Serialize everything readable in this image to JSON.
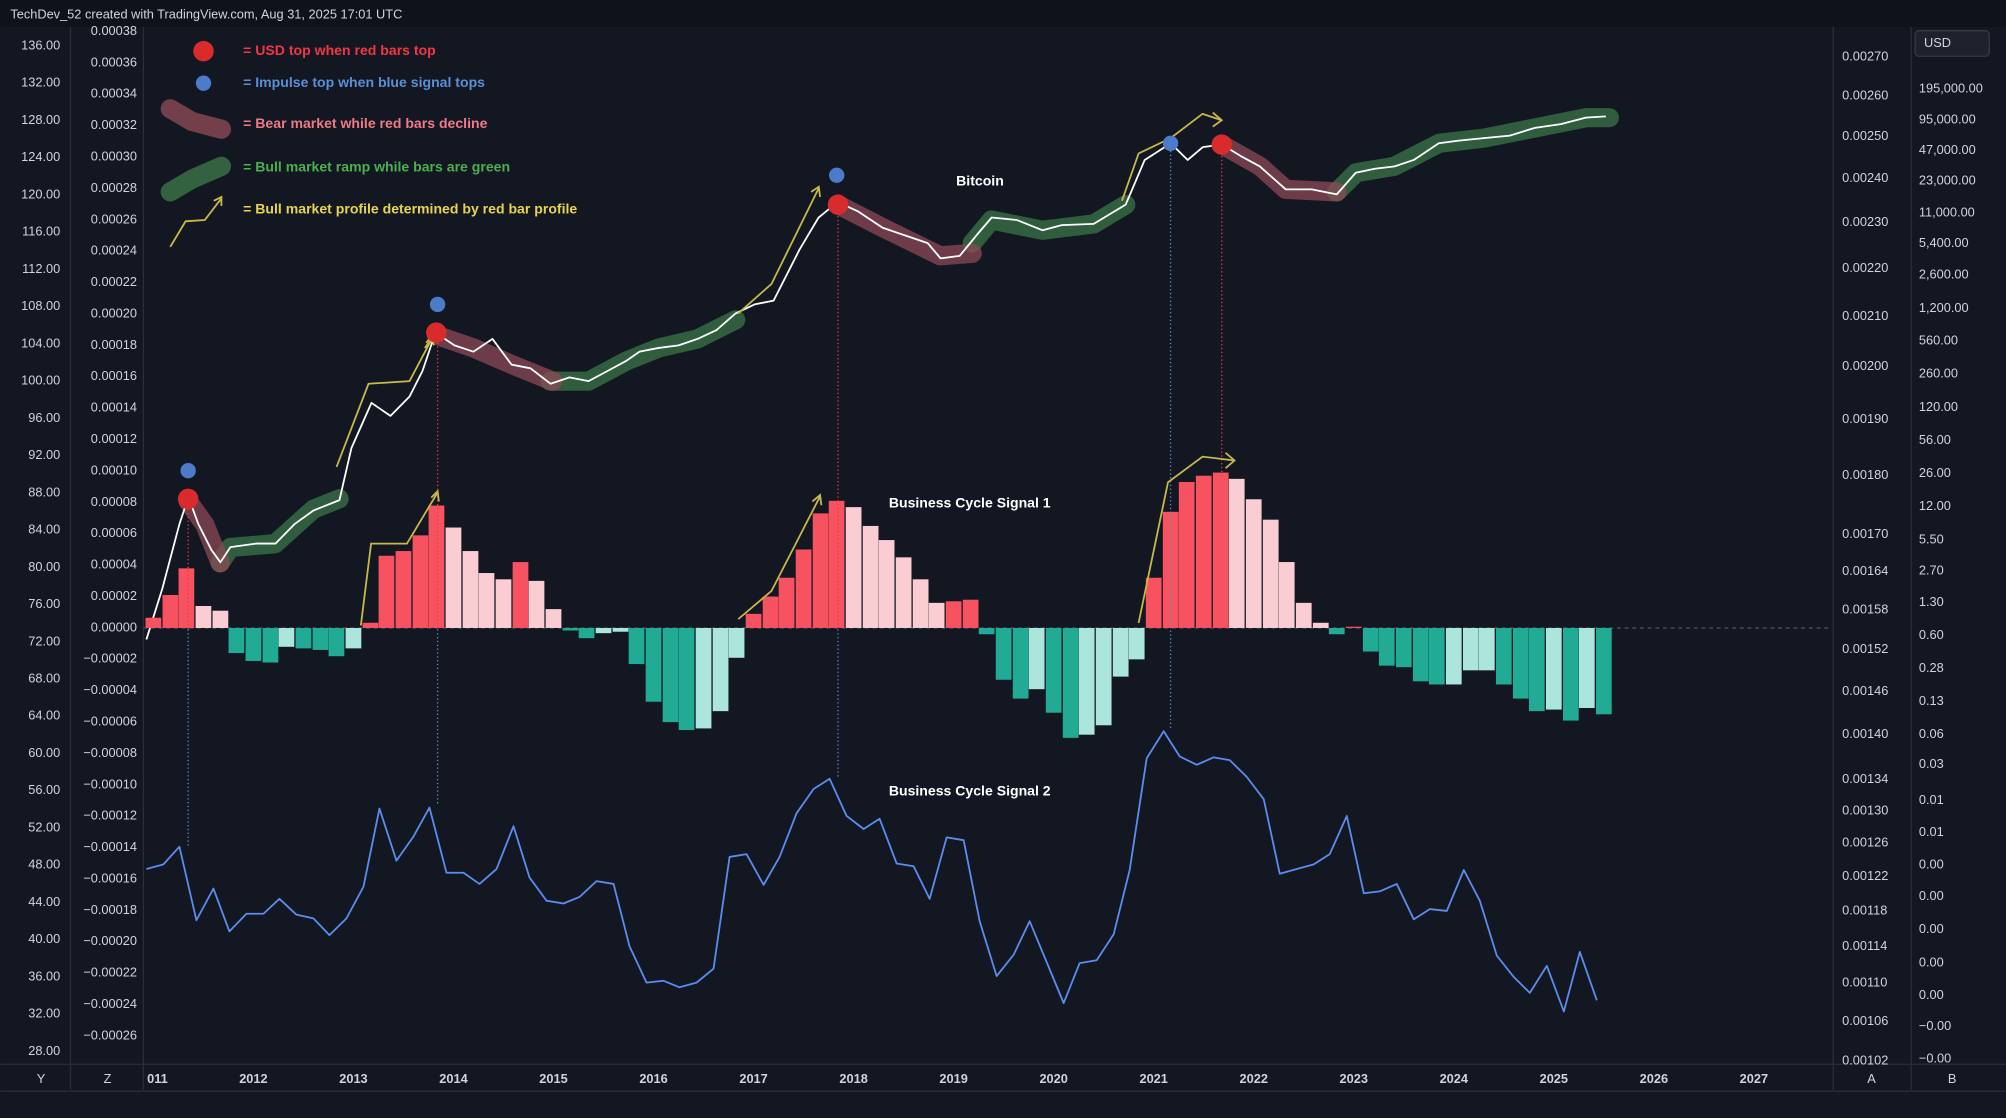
{
  "header": "TechDev_52 created with TradingView.com, Aug 31, 2025 17:01 UTC",
  "currency": "USD",
  "toolbar": {
    "left": [
      "Y",
      "Z"
    ],
    "right": [
      "A",
      "B"
    ]
  },
  "legend": [
    {
      "text": "= USD top when red bars top",
      "color": "#f23645"
    },
    {
      "text": "= Impulse top when blue signal tops",
      "color": "#5b8fd6"
    },
    {
      "text": "= Bear market while red bars decline",
      "color": "#f07a86"
    },
    {
      "text": "= Bull market ramp while bars are green",
      "color": "#4caf50"
    },
    {
      "text": "= Bull market profile determined by red bar profile",
      "color": "#e8d44d"
    }
  ],
  "chart_data": [
    {
      "type": "line",
      "title": "Bitcoin",
      "color": "#ffffff",
      "log": true,
      "xlim": [
        2010.9,
        2027.78
      ],
      "xticks": [
        {
          "value": 2011,
          "label": "011"
        },
        2012,
        2013,
        2014,
        2015,
        2016,
        2017,
        2018,
        2019,
        2020,
        2021,
        2022,
        2023,
        2024,
        2025,
        2026,
        2027
      ],
      "ylim": [
        2.85e-05,
        832000
      ],
      "yticks": [
        {
          "value": 195000,
          "label": "195,000.00"
        },
        {
          "value": 95000,
          "label": "95,000.00"
        },
        {
          "value": 47000,
          "label": "47,000.00"
        },
        {
          "value": 23000,
          "label": "23,000.00"
        },
        {
          "value": 11000,
          "label": "11,000.00"
        },
        {
          "value": 5400,
          "label": "5,400.00"
        },
        {
          "value": 2600,
          "label": "2,600.00"
        },
        {
          "value": 1200,
          "label": "1,200.00"
        },
        {
          "value": 560,
          "label": "560.00"
        },
        {
          "value": 260,
          "label": "260.00"
        },
        {
          "value": 120,
          "label": "120.00"
        },
        {
          "value": 56,
          "label": "56.00"
        },
        {
          "value": 26,
          "label": "26.00"
        },
        {
          "value": 12,
          "label": "12.00"
        },
        {
          "value": 5.5,
          "label": "5.50"
        },
        {
          "value": 2.7,
          "label": "2.70"
        },
        {
          "value": 1.3,
          "label": "1.30"
        },
        {
          "value": 0.6,
          "label": "0.60"
        },
        0.28,
        0.13,
        0.06,
        0.03,
        {
          "value": 0.013,
          "label": "0.01"
        },
        {
          "value": 0.0062,
          "label": "0.01"
        },
        {
          "value": 0.0029,
          "label": "0.00"
        },
        {
          "value": 0.0014,
          "label": "0.00"
        },
        {
          "value": 0.00065,
          "label": "0.00"
        },
        {
          "value": 0.0003,
          "label": "0.00"
        },
        {
          "value": 0.00014,
          "label": "0.00"
        },
        {
          "value": 6.8e-05,
          "label": "−0.00"
        },
        {
          "value": 3.2e-05,
          "label": "−0.00"
        }
      ],
      "x": [
        2010.93,
        2011.09,
        2011.26,
        2011.35,
        2011.45,
        2011.58,
        2011.67,
        2011.77,
        2012.03,
        2012.22,
        2012.41,
        2012.6,
        2012.86,
        2012.98,
        2013.18,
        2013.37,
        2013.56,
        2013.69,
        2013.82,
        2014.01,
        2014.2,
        2014.39,
        2014.58,
        2014.77,
        2014.97,
        2015.16,
        2015.35,
        2015.54,
        2015.73,
        2015.86,
        2016.05,
        2016.25,
        2016.44,
        2016.63,
        2016.82,
        2017.01,
        2017.2,
        2017.33,
        2017.46,
        2017.65,
        2017.84,
        2018.04,
        2018.29,
        2018.55,
        2018.74,
        2018.87,
        2019.06,
        2019.25,
        2019.38,
        2019.63,
        2019.89,
        2020.08,
        2020.4,
        2020.72,
        2020.91,
        2021.17,
        2021.34,
        2021.49,
        2021.68,
        2021.87,
        2022.06,
        2022.32,
        2022.58,
        2022.83,
        2023.02,
        2023.21,
        2023.41,
        2023.6,
        2023.85,
        2024.05,
        2024.3,
        2024.56,
        2024.81,
        2025.07,
        2025.32,
        2025.52
      ],
      "values": [
        0.55,
        1.8,
        8.0,
        15,
        8.0,
        4.4,
        3.3,
        4.7,
        5.1,
        5.1,
        8.0,
        11,
        14,
        47,
        134,
        99,
        155,
        281,
        685,
        509,
        440,
        592,
        326,
        299,
        209,
        242,
        222,
        281,
        357,
        440,
        480,
        509,
        592,
        728,
        1070,
        1320,
        1440,
        2610,
        4730,
        9930,
        14200,
        11500,
        7830,
        6370,
        5480,
        3840,
        4070,
        6970,
        9930,
        9380,
        7380,
        8320,
        8570,
        13400,
        37800,
        55700,
        37800,
        50900,
        54100,
        41400,
        32600,
        19100,
        19100,
        17000,
        28100,
        30800,
        32600,
        37800,
        55700,
        59200,
        62700,
        66500,
        79600,
        86900,
        101000,
        104000
      ]
    },
    {
      "type": "bar",
      "title": "Business Cycle Signal 1",
      "colors": {
        "rising_positive": "#f7525f",
        "falling_positive": "#facdd3",
        "rising_negative": "#22ab94",
        "falling_negative": "#ace5dc"
      },
      "ylim": [
        -0.000278,
        0.000383
      ],
      "yticks": [
        0.00038,
        0.00036,
        0.00034,
        0.00032,
        {
          "value": 0.0003,
          "label": "0.00030"
        },
        0.00028,
        0.00026,
        0.00024,
        0.00022,
        {
          "value": 0.0002,
          "label": "0.00020"
        },
        0.00018,
        0.00016,
        0.00014,
        0.00012,
        {
          "value": 0.0001,
          "label": "0.00010"
        },
        8e-05,
        6e-05,
        4e-05,
        2e-05,
        {
          "value": 0,
          "label": "0.00000"
        },
        {
          "value": -2e-05,
          "label": "−0.00002"
        },
        {
          "value": -4e-05,
          "label": "−0.00004"
        },
        {
          "value": -6e-05,
          "label": "−0.00006"
        },
        {
          "value": -8e-05,
          "label": "−0.00008"
        },
        {
          "value": -0.0001,
          "label": "−0.00010"
        },
        {
          "value": -0.00012,
          "label": "−0.00012"
        },
        {
          "value": -0.00014,
          "label": "−0.00014"
        },
        {
          "value": -0.00016,
          "label": "−0.00016"
        },
        {
          "value": -0.00018,
          "label": "−0.00018"
        },
        {
          "value": -0.0002,
          "label": "−0.00020"
        },
        {
          "value": -0.00022,
          "label": "−0.00022"
        },
        {
          "value": -0.00024,
          "label": "−0.00024"
        },
        {
          "value": -0.00026,
          "label": "−0.00026"
        }
      ],
      "x": [
        2011.0,
        2011.17,
        2011.33,
        2011.5,
        2011.67,
        2011.83,
        2012.0,
        2012.17,
        2012.33,
        2012.5,
        2012.67,
        2012.83,
        2013.0,
        2013.17,
        2013.33,
        2013.5,
        2013.67,
        2013.83,
        2014.0,
        2014.17,
        2014.33,
        2014.5,
        2014.67,
        2014.83,
        2015.0,
        2015.17,
        2015.33,
        2015.5,
        2015.67,
        2015.83,
        2016.0,
        2016.17,
        2016.33,
        2016.5,
        2016.67,
        2016.83,
        2017.0,
        2017.17,
        2017.33,
        2017.5,
        2017.67,
        2017.83,
        2018.0,
        2018.17,
        2018.33,
        2018.5,
        2018.67,
        2018.83,
        2019.0,
        2019.17,
        2019.33,
        2019.5,
        2019.67,
        2019.83,
        2020.0,
        2020.17,
        2020.33,
        2020.5,
        2020.67,
        2020.83,
        2021.0,
        2021.17,
        2021.33,
        2021.5,
        2021.67,
        2021.83,
        2022.0,
        2022.17,
        2022.33,
        2022.5,
        2022.67,
        2022.83,
        2023.0,
        2023.17,
        2023.33,
        2023.5,
        2023.67,
        2023.83,
        2024.0,
        2024.17,
        2024.33,
        2024.5,
        2024.67,
        2024.83,
        2025.0,
        2025.17,
        2025.33,
        2025.5
      ],
      "values": [
        6.5e-06,
        2.1e-05,
        3.8e-05,
        1.4e-05,
        1.1e-05,
        -1.6e-05,
        -2.1e-05,
        -2.2e-05,
        -1.2e-05,
        -1.3e-05,
        -1.4e-05,
        -1.8e-05,
        -1.3e-05,
        3.3e-06,
        4.6e-05,
        4.9e-05,
        5.9e-05,
        7.8e-05,
        6.4e-05,
        4.9e-05,
        3.5e-05,
        3.1e-05,
        4.2e-05,
        3e-05,
        1.2e-05,
        -1.6e-06,
        -6.5e-06,
        -3.3e-06,
        -2.4e-06,
        -2.3e-05,
        -4.7e-05,
        -6e-05,
        -6.5e-05,
        -6.4e-05,
        -5.3e-05,
        -1.9e-05,
        9e-06,
        2e-05,
        3.2e-05,
        5e-05,
        7.3e-05,
        8.1e-05,
        7.7e-05,
        6.5e-05,
        5.6e-05,
        4.5e-05,
        3.1e-05,
        1.6e-05,
        1.7e-05,
        1.8e-05,
        -4e-06,
        -3.3e-05,
        -4.5e-05,
        -3.9e-05,
        -5.4e-05,
        -7e-05,
        -6.8e-05,
        -6.2e-05,
        -3.1e-05,
        -2e-05,
        3.2e-05,
        7.4e-05,
        9.3e-05,
        9.7e-05,
        9.9e-05,
        9.5e-05,
        8.2e-05,
        6.9e-05,
        4.2e-05,
        1.6e-05,
        3.3e-06,
        -4e-06,
        8e-07,
        -1.5e-05,
        -2.4e-05,
        -2.5e-05,
        -3.4e-05,
        -3.6e-05,
        -3.6e-05,
        -2.7e-05,
        -2.7e-05,
        -3.6e-05,
        -4.5e-05,
        -5.3e-05,
        -5.2e-05,
        -5.9e-05,
        -5.1e-05,
        -5.5e-05
      ]
    },
    {
      "type": "line",
      "title": "Business Cycle Signal 2",
      "color": "#5b8def",
      "ylim": [
        26.63,
        138.06
      ],
      "yticks": [
        {
          "value": 136,
          "label": "136.00"
        },
        {
          "value": 132,
          "label": "132.00"
        },
        {
          "value": 128,
          "label": "128.00"
        },
        {
          "value": 124,
          "label": "124.00"
        },
        {
          "value": 120,
          "label": "120.00"
        },
        {
          "value": 116,
          "label": "116.00"
        },
        {
          "value": 112,
          "label": "112.00"
        },
        {
          "value": 108,
          "label": "108.00"
        },
        {
          "value": 104,
          "label": "104.00"
        },
        {
          "value": 100,
          "label": "100.00"
        },
        {
          "value": 96,
          "label": "96.00"
        },
        {
          "value": 92,
          "label": "92.00"
        },
        {
          "value": 88,
          "label": "88.00"
        },
        {
          "value": 84,
          "label": "84.00"
        },
        {
          "value": 80,
          "label": "80.00"
        },
        {
          "value": 76,
          "label": "76.00"
        },
        {
          "value": 72,
          "label": "72.00"
        },
        {
          "value": 68,
          "label": "68.00"
        },
        {
          "value": 64,
          "label": "64.00"
        },
        {
          "value": 60,
          "label": "60.00"
        },
        {
          "value": 56,
          "label": "56.00"
        },
        {
          "value": 52,
          "label": "52.00"
        },
        {
          "value": 48,
          "label": "48.00"
        },
        {
          "value": 44,
          "label": "44.00"
        },
        {
          "value": 40,
          "label": "40.00"
        },
        {
          "value": 36,
          "label": "36.00"
        },
        {
          "value": 32,
          "label": "32.00"
        },
        {
          "value": 28,
          "label": "28.00"
        }
      ],
      "y2log": true,
      "y2lim": [
        0.001017,
        0.002781
      ],
      "y2ticks": [
        {
          "value": 0.0027,
          "label": "0.00270"
        },
        {
          "value": 0.0026,
          "label": "0.00260"
        },
        {
          "value": 0.0025,
          "label": "0.00250"
        },
        {
          "value": 0.0024,
          "label": "0.00240"
        },
        {
          "value": 0.0023,
          "label": "0.00230"
        },
        {
          "value": 0.0022,
          "label": "0.00220"
        },
        {
          "value": 0.0021,
          "label": "0.00210"
        },
        {
          "value": 0.002,
          "label": "0.00200"
        },
        {
          "value": 0.0019,
          "label": "0.00190"
        },
        {
          "value": 0.0018,
          "label": "0.00180"
        },
        {
          "value": 0.0017,
          "label": "0.00170"
        },
        0.00164,
        0.00158,
        0.00152,
        0.00146,
        {
          "value": 0.0014,
          "label": "0.00140"
        },
        0.00134,
        {
          "value": 0.0013,
          "label": "0.00130"
        },
        0.00126,
        0.00122,
        0.00118,
        0.00114,
        {
          "value": 0.0011,
          "label": "0.00110"
        },
        0.00106,
        0.00102
      ],
      "x": [
        2010.93,
        2011.1,
        2011.26,
        2011.43,
        2011.6,
        2011.76,
        2011.93,
        2012.1,
        2012.26,
        2012.43,
        2012.6,
        2012.76,
        2012.93,
        2013.1,
        2013.26,
        2013.43,
        2013.6,
        2013.76,
        2013.93,
        2014.1,
        2014.26,
        2014.43,
        2014.6,
        2014.76,
        2014.93,
        2015.1,
        2015.26,
        2015.43,
        2015.6,
        2015.76,
        2015.93,
        2016.1,
        2016.26,
        2016.43,
        2016.6,
        2016.76,
        2016.93,
        2017.1,
        2017.26,
        2017.43,
        2017.6,
        2017.76,
        2017.93,
        2018.1,
        2018.26,
        2018.43,
        2018.6,
        2018.76,
        2018.93,
        2019.1,
        2019.26,
        2019.43,
        2019.6,
        2019.76,
        2019.93,
        2020.1,
        2020.26,
        2020.43,
        2020.6,
        2020.76,
        2020.93,
        2021.1,
        2021.26,
        2021.43,
        2021.6,
        2021.76,
        2021.93,
        2022.1,
        2022.26,
        2022.43,
        2022.6,
        2022.76,
        2022.93,
        2023.1,
        2023.26,
        2023.43,
        2023.6,
        2023.76,
        2023.93,
        2024.1,
        2024.26,
        2024.43,
        2024.6,
        2024.76,
        2024.93,
        2025.1,
        2025.26,
        2025.43
      ],
      "values": [
        47.6,
        48.1,
        50.0,
        42.1,
        45.5,
        40.9,
        42.8,
        42.8,
        44.4,
        42.7,
        42.3,
        40.5,
        42.3,
        45.7,
        54.1,
        48.5,
        51.1,
        54.2,
        47.2,
        47.2,
        46.0,
        47.6,
        52.2,
        46.7,
        44.2,
        43.9,
        44.6,
        46.3,
        46.0,
        39.3,
        35.4,
        35.6,
        34.9,
        35.4,
        36.9,
        48.9,
        49.2,
        45.9,
        48.9,
        53.6,
        56.2,
        57.3,
        53.3,
        51.9,
        53.0,
        48.2,
        47.9,
        44.4,
        51.0,
        50.7,
        42.0,
        36.1,
        38.4,
        42.0,
        37.6,
        33.2,
        37.5,
        37.8,
        40.6,
        47.5,
        59.5,
        62.4,
        59.7,
        58.8,
        59.6,
        59.3,
        57.5,
        55.1,
        47.1,
        47.6,
        48.1,
        49.2,
        53.3,
        45.0,
        45.2,
        46.0,
        42.2,
        43.3,
        43.1,
        47.5,
        44.2,
        38.3,
        36.0,
        34.3,
        37.2,
        32.3,
        38.7,
        33.5
      ]
    }
  ]
}
